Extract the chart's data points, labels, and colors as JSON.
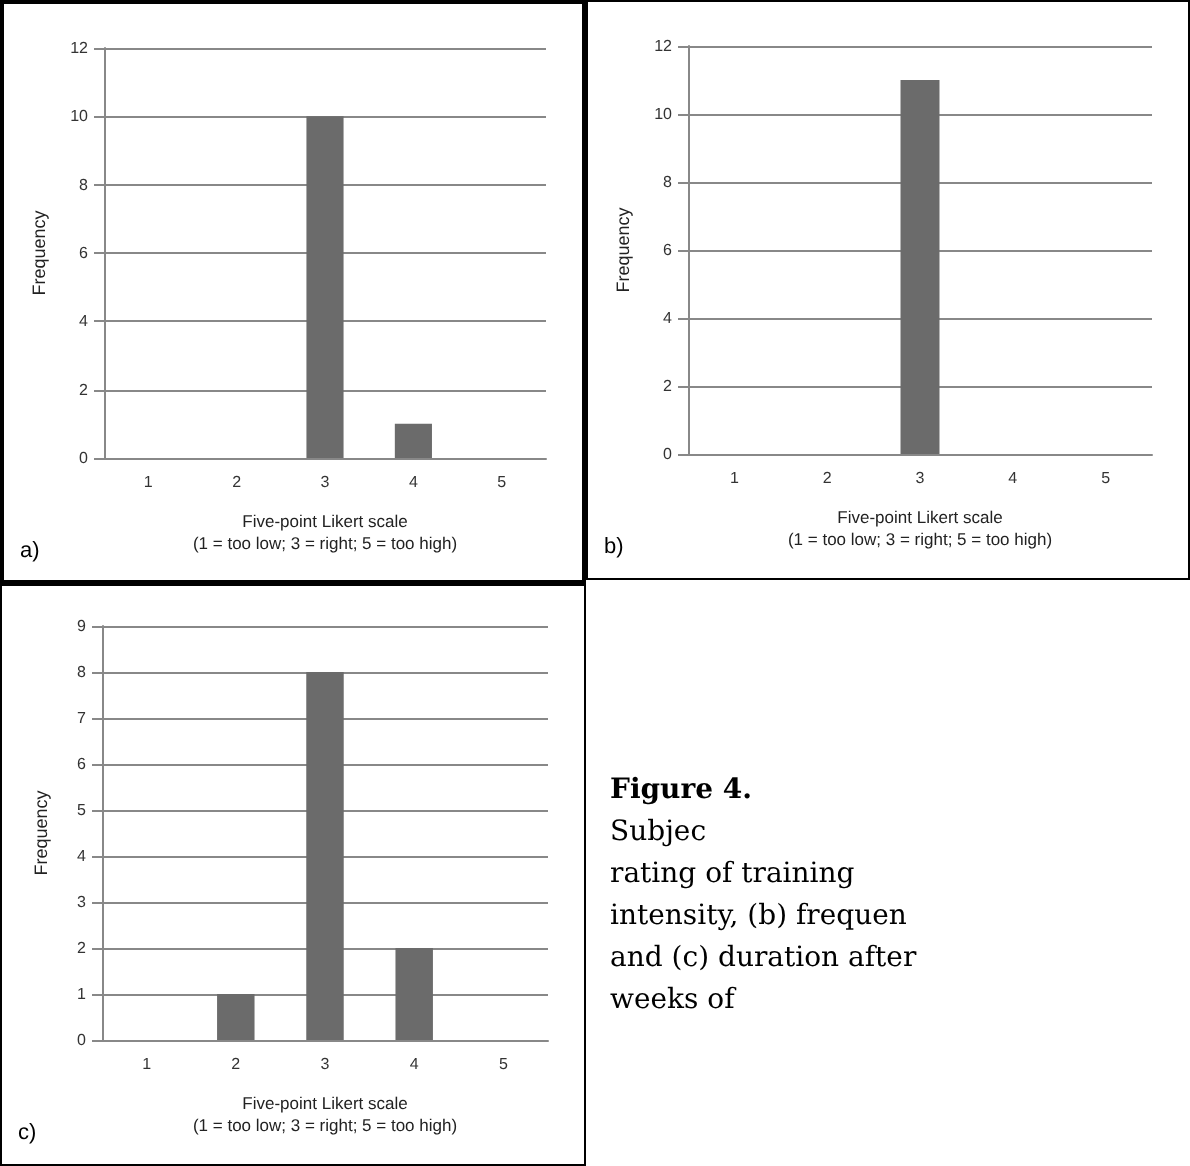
{
  "chart_data": [
    {
      "type": "bar",
      "categories": [
        "1",
        "2",
        "3",
        "4",
        "5"
      ],
      "values": [
        0,
        0,
        10,
        1,
        0
      ],
      "color": "#6b6b6b",
      "xlabel": "Five-point Likert scale\n(1 = too low; 3 = right; 5 = too high)",
      "ylabel": "Frequency",
      "ylim": [
        0,
        12
      ],
      "yticks": [
        0,
        2,
        4,
        6,
        8,
        10,
        12
      ],
      "grid": "y",
      "annotations": [
        "a)"
      ]
    },
    {
      "type": "bar",
      "categories": [
        "1",
        "2",
        "3",
        "4",
        "5"
      ],
      "values": [
        0,
        0,
        11,
        0,
        0
      ],
      "color": "#6b6b6b",
      "xlabel": "Five-point Likert scale\n(1 = too low; 3 = right; 5 = too high)",
      "ylabel": "Frequency",
      "ylim": [
        0,
        12
      ],
      "yticks": [
        0,
        2,
        4,
        6,
        8,
        10,
        12
      ],
      "grid": "y",
      "annotations": [
        "b)"
      ]
    },
    {
      "type": "bar",
      "categories": [
        "1",
        "2",
        "3",
        "4",
        "5"
      ],
      "values": [
        0,
        1,
        8,
        2,
        0
      ],
      "color": "#6b6b6b",
      "xlabel": "Five-point Likert scale\n(1 = too low; 3 = right; 5 = too high)",
      "ylabel": "Frequency",
      "ylim": [
        0,
        9
      ],
      "yticks": [
        0,
        1,
        2,
        3,
        4,
        5,
        6,
        7,
        8,
        9
      ],
      "grid": "y",
      "annotations": [
        "c)"
      ]
    },
    {
      "type": "other",
      "title": "Figure 4.",
      "annotations": [
        "Subjec",
        "rating of training",
        "intensity, (b) frequen",
        "and (c) duration after",
        "weeks of"
      ]
    }
  ]
}
